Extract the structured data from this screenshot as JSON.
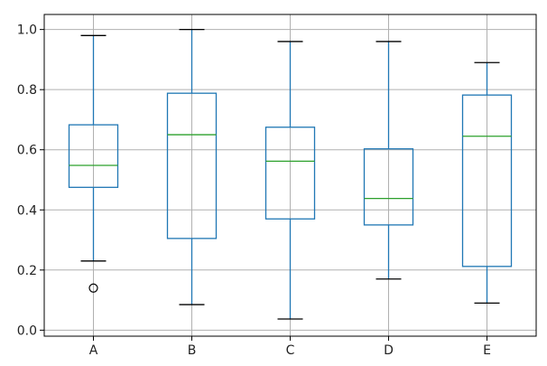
{
  "chart_data": {
    "type": "box",
    "title": "",
    "xlabel": "",
    "ylabel": "",
    "ylim": [
      -0.02,
      1.05
    ],
    "grid": true,
    "yticks": [
      0.0,
      0.2,
      0.4,
      0.6,
      0.8,
      1.0
    ],
    "ytick_labels": [
      "0.0",
      "0.2",
      "0.4",
      "0.6",
      "0.8",
      "1.0"
    ],
    "categories": [
      "A",
      "B",
      "C",
      "D",
      "E"
    ],
    "boxes": [
      {
        "category": "A",
        "whisker_low": 0.23,
        "q1": 0.475,
        "median": 0.548,
        "q3": 0.683,
        "whisker_high": 0.98,
        "outliers": [
          0.14
        ]
      },
      {
        "category": "B",
        "whisker_low": 0.085,
        "q1": 0.305,
        "median": 0.65,
        "q3": 0.788,
        "whisker_high": 1.0,
        "outliers": []
      },
      {
        "category": "C",
        "whisker_low": 0.037,
        "q1": 0.37,
        "median": 0.562,
        "q3": 0.675,
        "whisker_high": 0.96,
        "outliers": []
      },
      {
        "category": "D",
        "whisker_low": 0.17,
        "q1": 0.35,
        "median": 0.438,
        "q3": 0.603,
        "whisker_high": 0.96,
        "outliers": []
      },
      {
        "category": "E",
        "whisker_low": 0.09,
        "q1": 0.212,
        "median": 0.645,
        "q3": 0.782,
        "whisker_high": 0.89,
        "outliers": []
      }
    ],
    "colors": {
      "box": "#1f77b4",
      "median": "#2ca02c",
      "cap": "#000000",
      "outlier": "#000000",
      "grid": "#b0b0b0",
      "axes": "#000000"
    }
  }
}
